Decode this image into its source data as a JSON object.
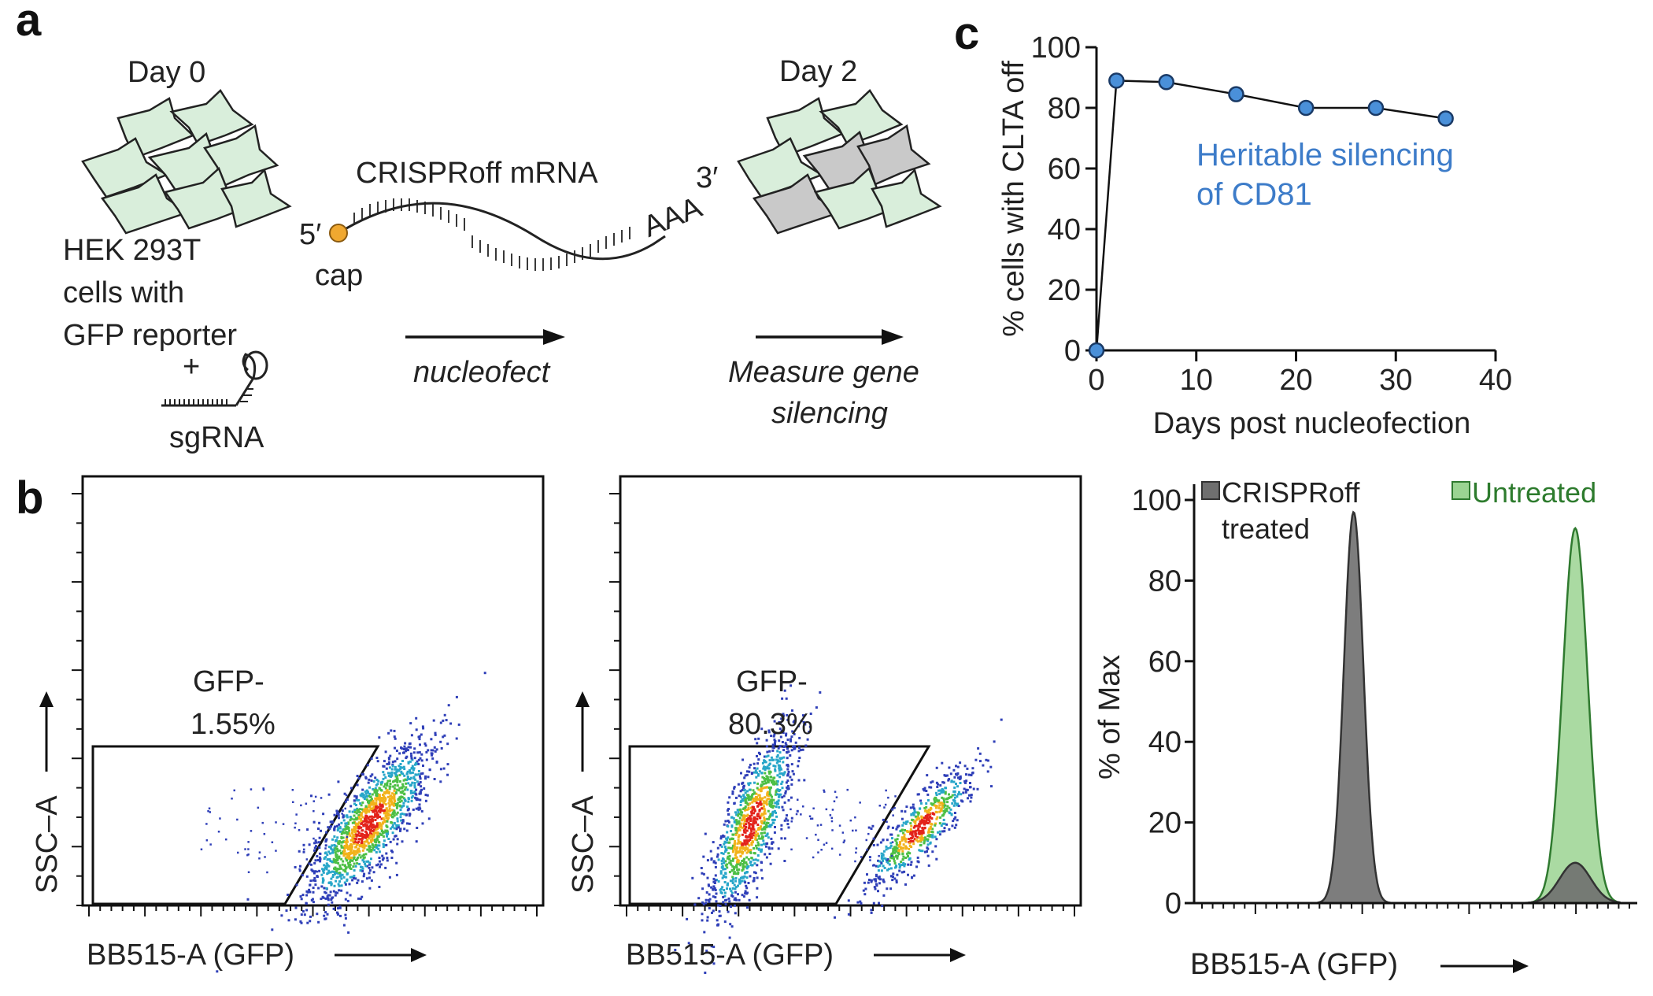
{
  "panels": {
    "a": {
      "letter": "a",
      "day0": "Day 0",
      "day2": "Day 2",
      "cells_label": [
        "HEK 293T",
        "cells with",
        "GFP reporter"
      ],
      "plus": "+",
      "sgrna": "sgRNA",
      "mrna_label": "CRISPRoff mRNA",
      "five_prime": "5′",
      "cap": "cap",
      "poly_a": "AAA",
      "three_prime": "3′",
      "arrow1_label": "nucleofect",
      "arrow2_label": [
        "Measure gene",
        "silencing"
      ]
    },
    "b": {
      "letter": "b",
      "plot1": {
        "gate_label": "GFP-",
        "gate_value": "1.55%",
        "xlabel": "BB515-A (GFP)",
        "ylabel": "SSC–A"
      },
      "plot2": {
        "gate_label": "GFP-",
        "gate_value": "80.3%",
        "xlabel": "BB515-A (GFP)",
        "ylabel": "SSC–A"
      },
      "histogram": {
        "ylabel": "% of Max",
        "xlabel": "BB515-A (GFP)",
        "legend_treated": [
          "CRISPRoff",
          "treated"
        ],
        "legend_untreated": "Untreated",
        "treated_color": "#6f6f6f",
        "untreated_color": "#9bd492"
      }
    },
    "c": {
      "letter": "c",
      "annotation": [
        "Heritable silencing",
        "of CD81"
      ],
      "annotation_color": "#3d7cc9"
    }
  },
  "chart_data": [
    {
      "type": "line",
      "title": "",
      "xlabel": "Days post nucleofection",
      "ylabel": "% cells with CLTA off",
      "x": [
        0,
        2,
        7,
        14,
        21,
        28,
        35
      ],
      "y": [
        0,
        89,
        88.5,
        84.5,
        80,
        80,
        76.5
      ],
      "xlim": [
        0,
        40
      ],
      "ylim": [
        0,
        100
      ],
      "xticks": [
        0,
        10,
        20,
        30,
        40
      ],
      "yticks": [
        0,
        20,
        40,
        60,
        80,
        100
      ],
      "marker_color": "#4a90d9"
    },
    {
      "type": "area",
      "title": "",
      "xlabel": "BB515-A (GFP)",
      "ylabel": "% of Max",
      "ylim": [
        0,
        100
      ],
      "yticks": [
        0,
        20,
        40,
        60,
        80,
        100
      ],
      "x_units": "relative log fluorescence (0-1)",
      "series": [
        {
          "name": "CRISPRoff treated",
          "peaks": [
            {
              "center": 0.36,
              "height": 97
            },
            {
              "center": 0.86,
              "height": 10
            }
          ]
        },
        {
          "name": "Untreated",
          "peaks": [
            {
              "center": 0.86,
              "height": 93
            }
          ]
        }
      ]
    }
  ]
}
